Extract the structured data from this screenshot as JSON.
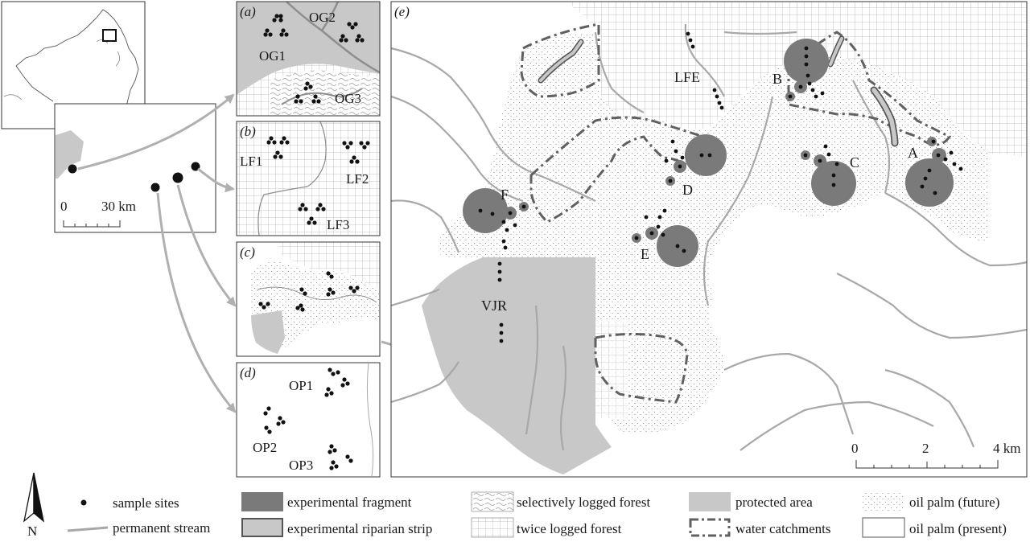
{
  "overview": {
    "scalebar_labels": [
      "0",
      "30 km"
    ]
  },
  "panels": {
    "a": {
      "tag": "(a)",
      "sites": [
        "OG1",
        "OG2",
        "OG3"
      ]
    },
    "b": {
      "tag": "(b)",
      "sites": [
        "LF1",
        "LF2",
        "LF3"
      ]
    },
    "c": {
      "tag": "(c)"
    },
    "d": {
      "tag": "(d)",
      "sites": [
        "OP1",
        "OP2",
        "OP3"
      ]
    },
    "e": {
      "tag": "(e)",
      "labels": {
        "lfe": "LFE",
        "vjr": "VJR",
        "a": "A",
        "b": "B",
        "c": "C",
        "d": "D",
        "e": "E",
        "f": "F"
      },
      "scalebar_labels": [
        "0",
        "2",
        "4 km"
      ]
    }
  },
  "north_arrow": "N",
  "legend": [
    {
      "key": "sample_sites",
      "label": "sample sites"
    },
    {
      "key": "permanent_stream",
      "label": "permanent stream"
    },
    {
      "key": "experimental_fragment",
      "label": "experimental fragment"
    },
    {
      "key": "experimental_riparian_strip",
      "label": "experimental riparian strip"
    },
    {
      "key": "selectively_logged_forest",
      "label": "selectively logged forest"
    },
    {
      "key": "twice_logged_forest",
      "label": "twice logged forest"
    },
    {
      "key": "protected_area",
      "label": "protected area"
    },
    {
      "key": "water_catchments",
      "label": "water catchments"
    },
    {
      "key": "oil_palm_future",
      "label": "oil palm (future)"
    },
    {
      "key": "oil_palm_present",
      "label": "oil palm (present)"
    }
  ],
  "colors": {
    "fragment": "#7a7a7a",
    "protected": "#c8c8c8",
    "stream": "#a8a8a8",
    "grid": "#b5b5b5",
    "ink": "#1a1a1a",
    "catchment": "#606060"
  }
}
